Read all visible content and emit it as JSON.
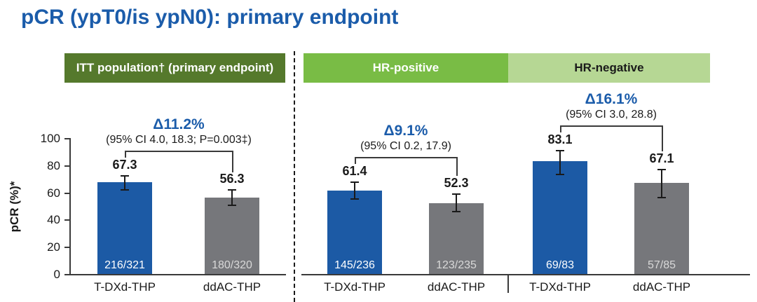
{
  "title": "pCR (ypT0/is ypN0): primary endpoint",
  "colors": {
    "accent_blue": "#1b5caa",
    "bar_blue": "#1c5aa5",
    "bar_gray": "#76777b",
    "header_dark_green": "#55792c",
    "header_mid_green": "#79bc45",
    "header_light_green": "#b6d794",
    "axis_dark": "#3a3a3a"
  },
  "chart_data": {
    "type": "bar",
    "ylabel": "pCR (%)*",
    "ylim": [
      0,
      100
    ],
    "yticks": [
      0,
      20,
      40,
      60,
      80,
      100
    ],
    "grid": false,
    "bar_series_note": "blue = T-DXd-THP, gray = ddAC-THP; error bars are 95% CI read from figure",
    "panels": [
      {
        "header": "ITT population† (primary endpoint)",
        "header_style": "dark",
        "delta_label": "Δ11.2%",
        "ci_label": "(95% CI 4.0, 18.3; P=0.003‡)",
        "bars": [
          {
            "category": "T-DXd-THP",
            "value": 67.3,
            "count": "216/321",
            "err_low": 61.9,
            "err_high": 72.4,
            "color": "blue"
          },
          {
            "category": "ddAC-THP",
            "value": 56.3,
            "count": "180/320",
            "err_low": 50.6,
            "err_high": 61.8,
            "color": "gray"
          }
        ]
      },
      {
        "header": "HR-positive",
        "header_style": "mid",
        "delta_label": "Δ9.1%",
        "ci_label": "(95% CI 0.2, 17.9)",
        "bars": [
          {
            "category": "T-DXd-THP",
            "value": 61.4,
            "count": "145/236",
            "err_low": 54.9,
            "err_high": 67.7,
            "color": "blue"
          },
          {
            "category": "ddAC-THP",
            "value": 52.3,
            "count": "123/235",
            "err_low": 45.7,
            "err_high": 58.8,
            "color": "gray"
          }
        ]
      },
      {
        "header": "HR-negative",
        "header_style": "light",
        "delta_label": "Δ16.1%",
        "ci_label": "(95% CI 3.0, 28.8)",
        "bars": [
          {
            "category": "T-DXd-THP",
            "value": 83.1,
            "count": "69/83",
            "err_low": 73.3,
            "err_high": 90.5,
            "color": "blue"
          },
          {
            "category": "ddAC-THP",
            "value": 67.1,
            "count": "57/85",
            "err_low": 56.0,
            "err_high": 76.8,
            "color": "gray"
          }
        ]
      }
    ]
  }
}
